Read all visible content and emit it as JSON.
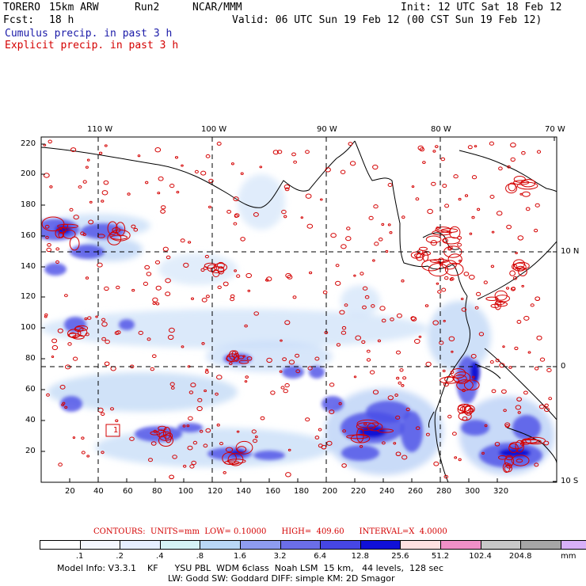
{
  "header": {
    "model": "TORERO",
    "resolution": "15km ARW",
    "run": "Run2",
    "org": "NCAR/MMM",
    "init": "Init: 12 UTC Sat 18 Feb 12",
    "fcst_label": "Fcst:",
    "fcst_value": "18 h",
    "valid": "Valid: 06 UTC Sun 19 Feb 12 (00 CST Sun 19 Feb 12)"
  },
  "legend_lines": {
    "cumulus": "Cumulus precip. in past 3 h",
    "explicit": "Explicit precip. in past 3 h"
  },
  "top_lon_labels": [
    "110 W",
    "100 W",
    "90 W",
    "80 W",
    "70 W"
  ],
  "right_lat_labels": [
    "10 N",
    "0",
    "10 S"
  ],
  "y_ticks": [
    "220",
    "200",
    "180",
    "160",
    "140",
    "120",
    "100",
    "80",
    "60",
    "40",
    "20"
  ],
  "x_ticks": [
    "20",
    "40",
    "60",
    "80",
    "100",
    "120",
    "140",
    "160",
    "180",
    "200",
    "220",
    "240",
    "260",
    "280",
    "300",
    "320"
  ],
  "box_label": "1",
  "contours": {
    "units": "CONTOURS:  UNITS=mm  LOW= 0.10000",
    "high": "HIGH=  409.60",
    "interval": "INTERVAL=X  4.0000"
  },
  "colorbar": {
    "colors": [
      "#ffffff",
      "#f4f7ff",
      "#e6efff",
      "#d6f3f5",
      "#b9d7f6",
      "#8e9cf0",
      "#6b6ee8",
      "#4646e4",
      "#1010d8",
      "#ffe1e1",
      "#f090c8",
      "#c8c8c8",
      "#a6a6a6",
      "#d8b0f8"
    ],
    "labels": [
      ".1",
      ".2",
      ".4",
      ".8",
      "1.6",
      "3.2",
      "6.4",
      "12.8",
      "25.6",
      "51.2",
      "102.4",
      "204.8"
    ],
    "unit": "mm"
  },
  "footer": {
    "line1": "Model Info: V3.3.1    KF      YSU PBL  WDM 6class  Noah LSM  15 km,   44 levels,  128 sec",
    "line2": "LW: Godd SW: Goddard DIFF: simple KM: 2D Smagor"
  }
}
